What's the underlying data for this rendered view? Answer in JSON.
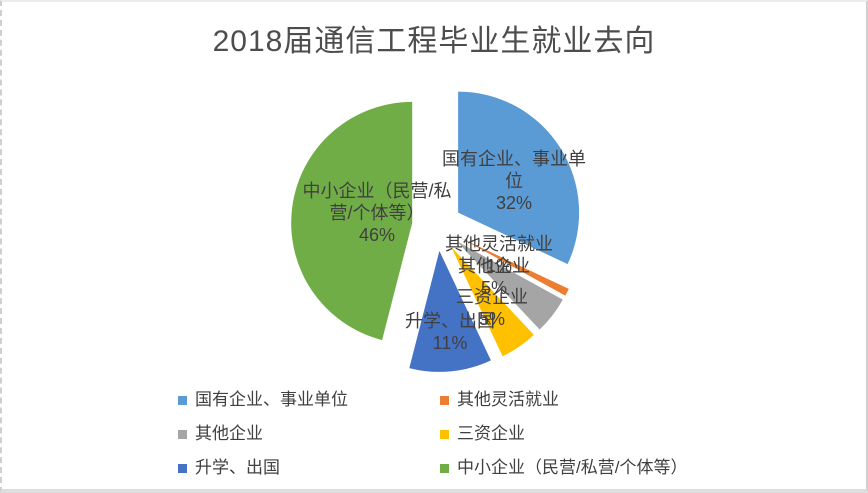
{
  "chart_data": {
    "type": "pie",
    "title": "2018届通信工程毕业生就业去向",
    "exploded": true,
    "start_angle_deg": 0,
    "direction": "clockwise",
    "legend_position": "bottom",
    "label_format": "name + percent",
    "total_percent": 100,
    "slices": [
      {
        "id": "state-owned",
        "label": "国有企业、事业单位",
        "value": 32,
        "percent_label": "32%",
        "color": "#5B9BD5"
      },
      {
        "id": "flexible-employment",
        "label": "其他灵活就业",
        "value": 1,
        "percent_label": "1%",
        "color": "#ED7D31"
      },
      {
        "id": "other-enterprises",
        "label": "其他企业",
        "value": 5,
        "percent_label": "5%",
        "color": "#A5A5A5"
      },
      {
        "id": "foreign-invested",
        "label": "三资企业",
        "value": 5,
        "percent_label": "5%",
        "color": "#FFC000"
      },
      {
        "id": "further-study",
        "label": "升学、出国",
        "value": 11,
        "percent_label": "11%",
        "color": "#4472C4"
      },
      {
        "id": "sme",
        "label": "中小企业（民营/私营/个体等）",
        "value": 46,
        "percent_label": "46%",
        "color": "#70AD47"
      }
    ],
    "text_color": "#404040",
    "title_color": "#4d4d4d"
  }
}
